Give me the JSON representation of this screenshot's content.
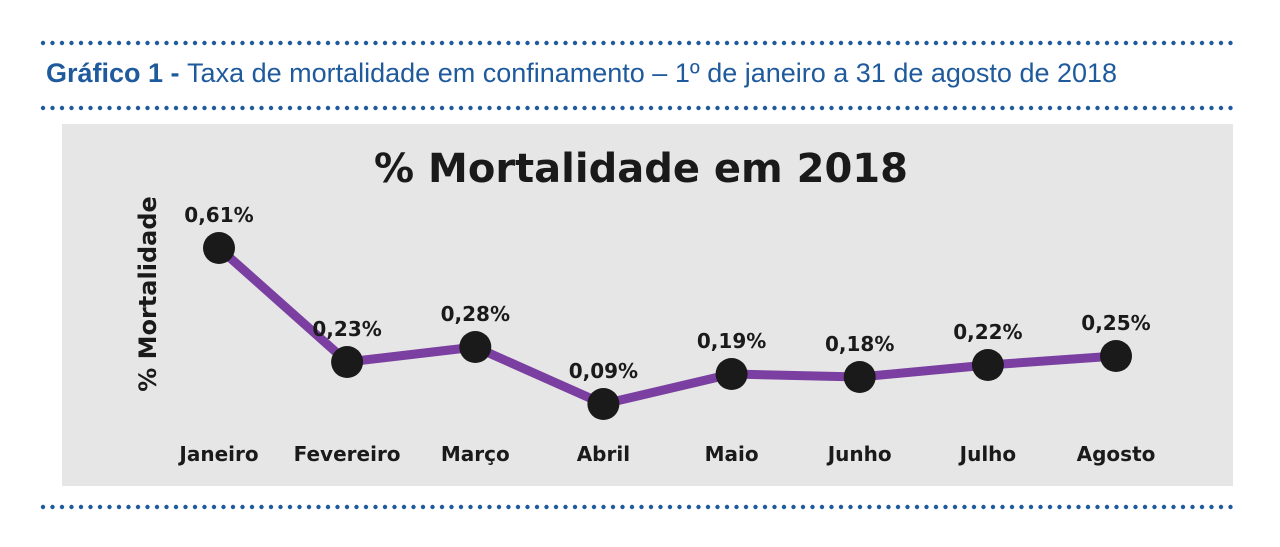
{
  "figure": {
    "caption_lead": "Gráfico 1 - ",
    "caption_text": "Taxa de mortalidade em confinamento – 1º de janeiro a 31 de agosto de 2018"
  },
  "colors": {
    "caption": "#1e5a9c",
    "dots": "#1e5a9c",
    "panel_bg": "#e6e6e6",
    "line": "#7a3fa0",
    "marker": "#1a1a1a",
    "text": "#1a1a1a"
  },
  "chart_data": {
    "type": "line",
    "title": "% Mortalidade em 2018",
    "ylabel": "% Mortalidade",
    "xlabel": "",
    "categories": [
      "Janeiro",
      "Fevereiro",
      "Março",
      "Abril",
      "Maio",
      "Junho",
      "Julho",
      "Agosto"
    ],
    "values": [
      0.61,
      0.23,
      0.28,
      0.09,
      0.19,
      0.18,
      0.22,
      0.25
    ],
    "data_labels": [
      "0,61%",
      "0,23%",
      "0,28%",
      "0,09%",
      "0,19%",
      "0,18%",
      "0,22%",
      "0,25%"
    ],
    "ylim": [
      0,
      0.7
    ],
    "grid": false,
    "legend": "none"
  }
}
